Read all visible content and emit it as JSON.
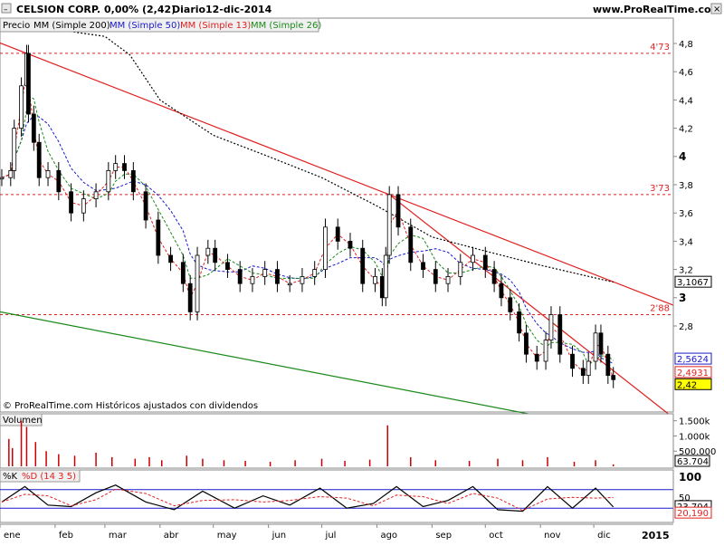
{
  "header": {
    "title": "CELSION CORP.",
    "change": "0,00% (2,42)",
    "period": "Diario",
    "date": "12-dic-2014",
    "site": "www.ProRealTime.com"
  },
  "price_panel": {
    "legend": [
      {
        "label": "Precio",
        "color": "#000000"
      },
      {
        "label": "MM (Simple 200)",
        "color": "#000000"
      },
      {
        "label": "MM (Simple 50)",
        "color": "#1a1acc"
      },
      {
        "label": "MM (Simple 13)",
        "color": "#e02020"
      },
      {
        "label": "MM (Simple 26)",
        "color": "#1a8a1a"
      }
    ],
    "footer": "© ProRealTime.com Históricos ajustados con dividendos",
    "y_ticks": [
      "4,8",
      "4,6",
      "4,4",
      "4,2",
      "4",
      "3,8",
      "3,6",
      "3,4",
      "3,2",
      "3",
      "2,8"
    ],
    "level_labels": [
      "4'73",
      "3'73",
      "2'88"
    ],
    "value_badges": [
      {
        "text": "3,1067",
        "color": "#000000"
      },
      {
        "text": "2,5624",
        "color": "#1a1acc"
      },
      {
        "text": "2,4931",
        "color": "#e02020"
      },
      {
        "text": "2,42",
        "color": "#000000",
        "bg": "#ffff00"
      }
    ]
  },
  "volume_panel": {
    "title": "Volumen",
    "y_ticks": [
      "1.500k",
      "1.000k",
      "500.000"
    ],
    "value_badge": "63.704"
  },
  "stoch_panel": {
    "title": "%K",
    "subtitle": "%D (14 3 5)",
    "y_ticks": [
      "100",
      "50"
    ],
    "value_badges": [
      {
        "text": "23,704",
        "color": "#000000"
      },
      {
        "text": "20,190",
        "color": "#e02020"
      }
    ]
  },
  "x_axis": {
    "months": [
      "ene",
      "feb",
      "mar",
      "abr",
      "may",
      "jun",
      "jul",
      "ago",
      "sep",
      "oct",
      "nov",
      "dic"
    ],
    "year_label": "2015"
  },
  "chart_data": {
    "type": "line",
    "price": {
      "dates": [
        "2014-01-02",
        "2014-01-07",
        "2014-01-09",
        "2014-01-13",
        "2014-01-16",
        "2014-01-17",
        "2014-01-20",
        "2014-01-23",
        "2014-01-28",
        "2014-02-03",
        "2014-02-10",
        "2014-02-17",
        "2014-02-24",
        "2014-03-03",
        "2014-03-07",
        "2014-03-12",
        "2014-03-17",
        "2014-03-24",
        "2014-03-31",
        "2014-04-07",
        "2014-04-14",
        "2014-04-18",
        "2014-04-22",
        "2014-04-28",
        "2014-05-02",
        "2014-05-09",
        "2014-05-16",
        "2014-05-23",
        "2014-05-30",
        "2014-06-06",
        "2014-06-13",
        "2014-06-20",
        "2014-06-27",
        "2014-07-03",
        "2014-07-10",
        "2014-07-17",
        "2014-07-24",
        "2014-07-31",
        "2014-08-04",
        "2014-08-06",
        "2014-08-08",
        "2014-08-13",
        "2014-08-20",
        "2014-08-27",
        "2014-09-03",
        "2014-09-10",
        "2014-09-17",
        "2014-09-24",
        "2014-10-01",
        "2014-10-06",
        "2014-10-10",
        "2014-10-15",
        "2014-10-20",
        "2014-10-24",
        "2014-10-30",
        "2014-11-04",
        "2014-11-07",
        "2014-11-12",
        "2014-11-19",
        "2014-11-25",
        "2014-11-28",
        "2014-12-02",
        "2014-12-05",
        "2014-12-09",
        "2014-12-12"
      ],
      "close": [
        3.85,
        3.9,
        4.2,
        4.5,
        4.73,
        4.3,
        4.1,
        3.85,
        3.9,
        3.75,
        3.6,
        3.7,
        3.75,
        3.9,
        3.95,
        3.9,
        3.75,
        3.55,
        3.3,
        3.25,
        3.1,
        2.9,
        3.3,
        3.35,
        3.25,
        3.2,
        3.1,
        3.15,
        3.2,
        3.1,
        3.1,
        3.15,
        3.2,
        3.5,
        3.4,
        3.35,
        3.1,
        3.15,
        3.0,
        3.3,
        3.73,
        3.5,
        3.25,
        3.2,
        3.1,
        3.15,
        3.25,
        3.3,
        3.2,
        3.1,
        3.0,
        2.9,
        2.75,
        2.6,
        2.55,
        2.7,
        2.88,
        2.6,
        2.5,
        2.45,
        2.55,
        2.75,
        2.6,
        2.45,
        2.42
      ],
      "sma200": {
        "dates": [
          "2014-01-02",
          "2014-02-01",
          "2014-03-01",
          "2014-03-15",
          "2014-04-01",
          "2014-05-01",
          "2014-06-01",
          "2014-07-01",
          "2014-08-01",
          "2014-09-01",
          "2014-10-01",
          "2014-11-01",
          "2014-12-12"
        ],
        "values": [
          4.95,
          4.9,
          4.85,
          4.72,
          4.4,
          4.15,
          4.0,
          3.85,
          3.65,
          3.43,
          3.33,
          3.23,
          3.11
        ]
      },
      "sma50_last": 2.5624,
      "sma13_last": 2.4931
    },
    "levels": [
      {
        "label": "4'73",
        "value": 4.73
      },
      {
        "label": "3'73",
        "value": 3.73
      },
      {
        "label": "2'88",
        "value": 2.88
      }
    ],
    "volume": {
      "unit": "shares",
      "dates": [
        "2014-01-06",
        "2014-01-08",
        "2014-01-13",
        "2014-01-16",
        "2014-01-21",
        "2014-01-27",
        "2014-02-03",
        "2014-02-12",
        "2014-02-24",
        "2014-03-05",
        "2014-03-18",
        "2014-03-26",
        "2014-04-02",
        "2014-04-16",
        "2014-04-25",
        "2014-05-07",
        "2014-05-19",
        "2014-06-02",
        "2014-06-16",
        "2014-07-01",
        "2014-07-14",
        "2014-07-28",
        "2014-08-07",
        "2014-08-20",
        "2014-09-03",
        "2014-09-22",
        "2014-10-08",
        "2014-10-22",
        "2014-11-05",
        "2014-11-20",
        "2014-12-02",
        "2014-12-12"
      ],
      "values": [
        900000,
        600000,
        1500000,
        1300000,
        800000,
        500000,
        400000,
        350000,
        450000,
        300000,
        250000,
        300000,
        200000,
        350000,
        250000,
        200000,
        180000,
        150000,
        200000,
        250000,
        180000,
        220000,
        1350000,
        300000,
        200000,
        180000,
        250000,
        200000,
        300000,
        150000,
        200000,
        63704
      ]
    },
    "stochastic": {
      "params": "14 3 5",
      "k_last": 23.704,
      "d_last": 20.19,
      "dates": [
        "2014-01-02",
        "2014-01-15",
        "2014-01-28",
        "2014-02-10",
        "2014-02-24",
        "2014-03-07",
        "2014-03-24",
        "2014-04-09",
        "2014-04-25",
        "2014-05-13",
        "2014-05-29",
        "2014-06-13",
        "2014-06-30",
        "2014-07-15",
        "2014-07-30",
        "2014-08-12",
        "2014-08-27",
        "2014-09-10",
        "2014-09-24",
        "2014-10-08",
        "2014-10-22",
        "2014-11-05",
        "2014-11-19",
        "2014-12-02",
        "2014-12-12"
      ],
      "k": [
        40,
        90,
        30,
        25,
        70,
        95,
        40,
        15,
        75,
        20,
        60,
        30,
        85,
        20,
        35,
        90,
        25,
        45,
        90,
        15,
        10,
        90,
        20,
        85,
        23.7
      ]
    }
  }
}
